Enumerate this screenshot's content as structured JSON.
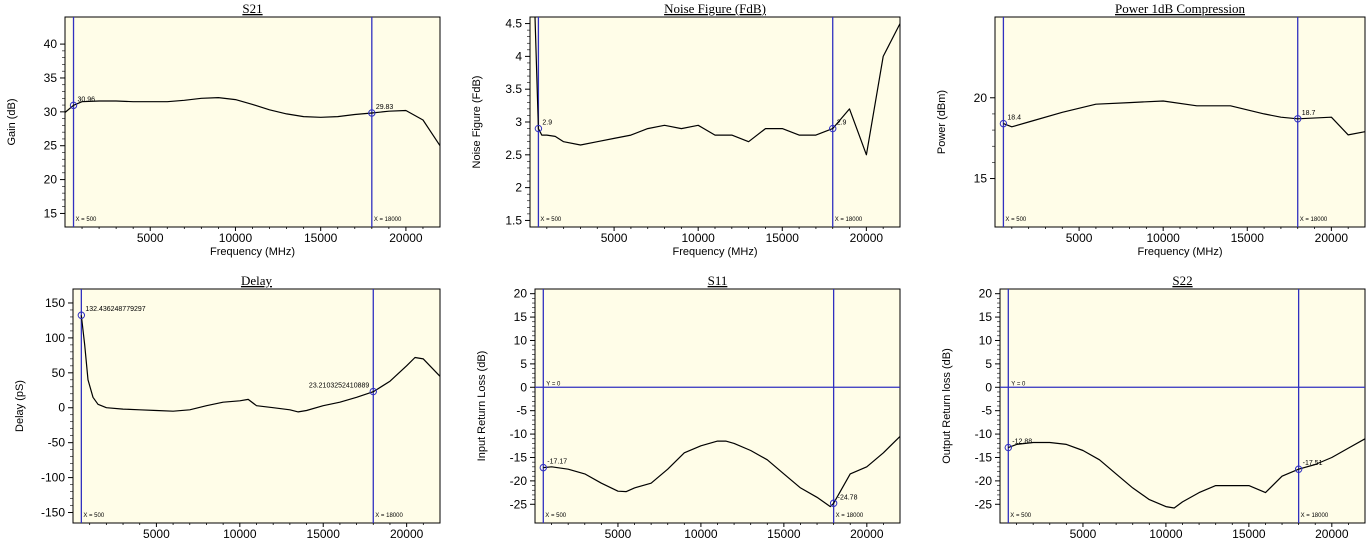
{
  "colors": {
    "plot_bg": "#fffde8",
    "trace": "#000000",
    "cursor": "#3030c0",
    "frame": "#000000"
  },
  "chart_data": [
    {
      "type": "line",
      "title": "S21",
      "xlabel": "Frequency (MHz)",
      "ylabel": "Gain (dB)",
      "xlim": [
        0,
        22000
      ],
      "ylim": [
        13,
        44
      ],
      "xticks": [
        5000,
        10000,
        15000,
        20000
      ],
      "yticks": [
        15,
        20,
        25,
        30,
        35,
        40
      ],
      "vcursors": [
        {
          "x": 500,
          "label": "X = 500"
        },
        {
          "x": 18000,
          "label": "X = 18000"
        }
      ],
      "hcursors": [],
      "markers": [
        {
          "x": 500,
          "y": 30.96,
          "label": "30.96"
        },
        {
          "x": 18000,
          "y": 29.83,
          "label": "29.83"
        }
      ],
      "series": [
        {
          "x": [
            0,
            500,
            1000,
            2000,
            3000,
            4000,
            5000,
            6000,
            7000,
            8000,
            9000,
            10000,
            11000,
            12000,
            13000,
            14000,
            15000,
            16000,
            17000,
            18000,
            19000,
            20000,
            21000,
            22000
          ],
          "y": [
            29.9,
            30.96,
            31.5,
            31.6,
            31.6,
            31.5,
            31.5,
            31.5,
            31.7,
            32.0,
            32.1,
            31.8,
            31.1,
            30.3,
            29.7,
            29.3,
            29.2,
            29.3,
            29.6,
            29.83,
            30.1,
            30.2,
            28.8,
            25.0
          ]
        }
      ]
    },
    {
      "type": "line",
      "title": "Noise Figure (FdB)",
      "xlabel": "Frequency (MHz)",
      "ylabel": "Noise Figure (FdB)",
      "xlim": [
        0,
        22000
      ],
      "ylim": [
        1.4,
        4.6
      ],
      "xticks": [
        5000,
        10000,
        15000,
        20000
      ],
      "yticks": [
        1.5,
        2.0,
        2.5,
        3.0,
        3.5,
        4.0,
        4.5
      ],
      "vcursors": [
        {
          "x": 500,
          "label": "X = 500"
        },
        {
          "x": 18000,
          "label": "X = 18000"
        }
      ],
      "hcursors": [],
      "markers": [
        {
          "x": 500,
          "y": 2.9,
          "label": "2.9"
        },
        {
          "x": 18000,
          "y": 2.9,
          "label": "2.9"
        }
      ],
      "series": [
        {
          "x": [
            300,
            500,
            600,
            700,
            1000,
            1500,
            2000,
            3000,
            4000,
            5000,
            6000,
            7000,
            8000,
            9000,
            10000,
            11000,
            12000,
            13000,
            14000,
            15000,
            16000,
            17000,
            18000,
            19000,
            20000,
            21000,
            22000
          ],
          "y": [
            4.6,
            2.9,
            2.85,
            2.8,
            2.8,
            2.78,
            2.7,
            2.65,
            2.7,
            2.75,
            2.8,
            2.9,
            2.95,
            2.9,
            2.95,
            2.8,
            2.8,
            2.7,
            2.9,
            2.9,
            2.8,
            2.8,
            2.9,
            3.2,
            2.5,
            4.0,
            4.5
          ]
        }
      ]
    },
    {
      "type": "line",
      "title": "Power 1dB Compression",
      "xlabel": "Frequency (MHz)",
      "ylabel": "Power (dBm)",
      "xlim": [
        0,
        22000
      ],
      "ylim": [
        12,
        25
      ],
      "xticks": [
        5000,
        10000,
        15000,
        20000
      ],
      "yticks": [
        15,
        20
      ],
      "vcursors": [
        {
          "x": 500,
          "label": "X = 500"
        },
        {
          "x": 18000,
          "label": "X = 18000"
        }
      ],
      "hcursors": [],
      "markers": [
        {
          "x": 500,
          "y": 18.4,
          "label": "18.4"
        },
        {
          "x": 18000,
          "y": 18.7,
          "label": "18.7"
        }
      ],
      "series": [
        {
          "x": [
            500,
            1000,
            2000,
            4000,
            6000,
            8000,
            10000,
            12000,
            14000,
            16000,
            17000,
            18000,
            20000,
            21000,
            22000
          ],
          "y": [
            18.4,
            18.2,
            18.5,
            19.1,
            19.6,
            19.7,
            19.8,
            19.5,
            19.5,
            19.0,
            18.8,
            18.7,
            18.8,
            17.7,
            17.9
          ]
        }
      ]
    },
    {
      "type": "line",
      "title": "Delay",
      "xlabel": "Frequency (MHz)",
      "ylabel": "Delay (pS)",
      "xlim": [
        0,
        22000
      ],
      "ylim": [
        -165,
        170
      ],
      "xticks": [
        5000,
        10000,
        15000,
        20000
      ],
      "yticks": [
        -150,
        -100,
        -50,
        0,
        50,
        100,
        150
      ],
      "vcursors": [
        {
          "x": 500,
          "label": "X = 500"
        },
        {
          "x": 18000,
          "label": "X = 18000"
        }
      ],
      "hcursors": [],
      "markers": [
        {
          "x": 500,
          "y": 132.436248779297,
          "label": "132.436248779297"
        },
        {
          "x": 18000,
          "y": 23.2103252410889,
          "label": "23.2103252410889"
        }
      ],
      "series": [
        {
          "x": [
            500,
            700,
            900,
            1200,
            1500,
            2000,
            3000,
            4000,
            5000,
            6000,
            7000,
            8000,
            9000,
            10000,
            10500,
            11000,
            12000,
            13000,
            13500,
            14000,
            15000,
            16000,
            17000,
            18000,
            19000,
            20000,
            20500,
            21000,
            22000
          ],
          "y": [
            132.4,
            90,
            40,
            15,
            5,
            0,
            -2,
            -3,
            -4,
            -5,
            -3,
            3,
            8,
            10,
            12,
            3,
            0,
            -3,
            -6,
            -4,
            3,
            8,
            15,
            23,
            38,
            60,
            72,
            70,
            45
          ]
        }
      ]
    },
    {
      "type": "line",
      "title": "S11",
      "xlabel": "Frequency (MHz)",
      "ylabel": "Input Return Loss (dB)",
      "xlim": [
        0,
        22000
      ],
      "ylim": [
        -29,
        21
      ],
      "xticks": [
        5000,
        10000,
        15000,
        20000
      ],
      "yticks": [
        -25,
        -20,
        -15,
        -10,
        -5,
        0,
        5,
        10,
        15,
        20
      ],
      "vcursors": [
        {
          "x": 500,
          "label": "X = 500"
        },
        {
          "x": 18000,
          "label": "X = 18000"
        }
      ],
      "hcursors": [
        {
          "y": 0,
          "label": "Y = 0"
        }
      ],
      "markers": [
        {
          "x": 500,
          "y": -17.17,
          "label": "-17.17"
        },
        {
          "x": 18000,
          "y": -24.78,
          "label": "-24.78"
        }
      ],
      "series": [
        {
          "x": [
            500,
            1000,
            2000,
            3000,
            4000,
            5000,
            5500,
            6000,
            7000,
            8000,
            9000,
            10000,
            11000,
            11500,
            12000,
            13000,
            14000,
            15000,
            16000,
            17000,
            17800,
            18000,
            19000,
            20000,
            21000,
            22000
          ],
          "y": [
            -17.17,
            -17.0,
            -17.5,
            -18.5,
            -20.5,
            -22.2,
            -22.3,
            -21.5,
            -20.5,
            -17.5,
            -14.0,
            -12.5,
            -11.5,
            -11.5,
            -12.0,
            -13.5,
            -15.5,
            -18.5,
            -21.5,
            -23.5,
            -25.5,
            -24.78,
            -18.5,
            -17.0,
            -14.0,
            -10.5
          ]
        }
      ]
    },
    {
      "type": "line",
      "title": "S22",
      "xlabel": "Frequency (MHz)",
      "ylabel": "Output Return loss (dB)",
      "xlim": [
        0,
        22000
      ],
      "ylim": [
        -29,
        21
      ],
      "xticks": [
        5000,
        10000,
        15000,
        20000
      ],
      "yticks": [
        -25,
        -20,
        -15,
        -10,
        -5,
        0,
        5,
        10,
        15,
        20
      ],
      "vcursors": [
        {
          "x": 500,
          "label": "X = 500"
        },
        {
          "x": 18000,
          "label": "X = 18000"
        }
      ],
      "hcursors": [
        {
          "y": 0,
          "label": "Y = 0"
        }
      ],
      "markers": [
        {
          "x": 500,
          "y": -12.88,
          "label": "-12.88"
        },
        {
          "x": 18000,
          "y": -17.51,
          "label": "-17.51"
        }
      ],
      "series": [
        {
          "x": [
            500,
            1000,
            2000,
            3000,
            4000,
            5000,
            6000,
            7000,
            8000,
            9000,
            10000,
            10500,
            11000,
            12000,
            13000,
            14000,
            15000,
            16000,
            17000,
            18000,
            19000,
            20000,
            21000,
            22000
          ],
          "y": [
            -12.88,
            -12.2,
            -11.8,
            -11.8,
            -12.2,
            -13.5,
            -15.5,
            -18.5,
            -21.5,
            -24.0,
            -25.5,
            -25.8,
            -24.5,
            -22.5,
            -21.0,
            -21.0,
            -21.0,
            -22.5,
            -19.0,
            -17.51,
            -16.5,
            -15.0,
            -13.0,
            -11.0
          ]
        }
      ]
    }
  ]
}
